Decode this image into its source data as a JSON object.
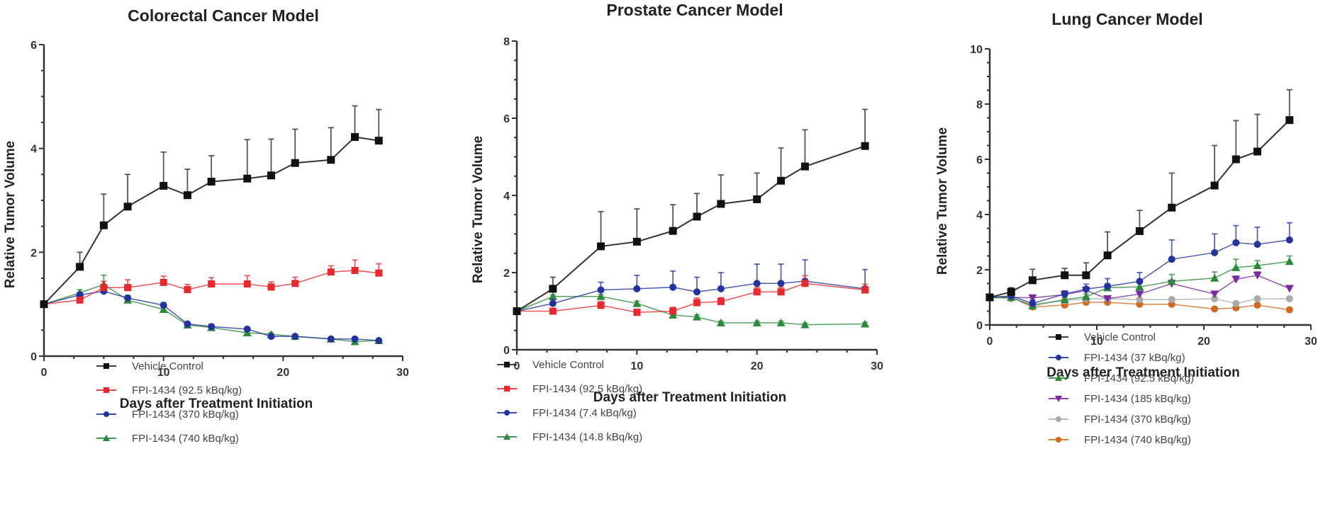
{
  "chart_data": [
    {
      "type": "line",
      "title": "Colorectal Cancer Model",
      "xlabel": "Days after Treatment Initiation",
      "ylabel": "Relative Tumor Volume",
      "xlim": [
        0,
        30
      ],
      "ylim": [
        0,
        6
      ],
      "xticks": [
        0,
        10,
        20,
        30
      ],
      "yticks": [
        0,
        2,
        4,
        6
      ],
      "grid": false,
      "legend_position": "bottom",
      "series": [
        {
          "name": "Vehicle Control",
          "color": "#111111",
          "marker": "square",
          "x": [
            0,
            3,
            5,
            7,
            10,
            12,
            14,
            17,
            19,
            21,
            24,
            26,
            28
          ],
          "y": [
            1.0,
            1.72,
            2.52,
            2.88,
            3.28,
            3.1,
            3.36,
            3.42,
            3.48,
            3.72,
            3.78,
            4.22,
            4.15
          ],
          "err": [
            0,
            0.28,
            0.6,
            0.62,
            0.65,
            0.5,
            0.5,
            0.75,
            0.7,
            0.65,
            0.62,
            0.6,
            0.6
          ]
        },
        {
          "name": "FPI-1434 (92.5 kBq/kg)",
          "color": "#e8282c",
          "marker": "square",
          "x": [
            0,
            3,
            5,
            7,
            10,
            12,
            14,
            17,
            19,
            21,
            24,
            26,
            28
          ],
          "y": [
            1.0,
            1.08,
            1.32,
            1.32,
            1.42,
            1.28,
            1.39,
            1.39,
            1.33,
            1.4,
            1.62,
            1.65,
            1.6
          ],
          "err": [
            0,
            0.05,
            0.12,
            0.15,
            0.12,
            0.1,
            0.12,
            0.16,
            0.1,
            0.12,
            0.12,
            0.2,
            0.18
          ]
        },
        {
          "name": "FPI-1434 (370 kBq/kg)",
          "color": "#2233a0",
          "marker": "circle",
          "x": [
            0,
            3,
            5,
            7,
            10,
            12,
            14,
            17,
            19,
            21,
            24,
            26,
            28
          ],
          "y": [
            1.0,
            1.18,
            1.25,
            1.12,
            0.98,
            0.62,
            0.57,
            0.52,
            0.38,
            0.38,
            0.33,
            0.33,
            0.3
          ],
          "err": [
            0,
            0.05,
            0.06,
            0.05,
            0.05,
            0.04,
            0.04,
            0.04,
            0.03,
            0.03,
            0.02,
            0.02,
            0.02
          ]
        },
        {
          "name": "FPI-1434 (740 kBq/kg)",
          "color": "#2a8a3a",
          "marker": "triangle",
          "x": [
            0,
            3,
            5,
            7,
            10,
            12,
            14,
            17,
            19,
            21,
            24,
            26,
            28
          ],
          "y": [
            1.0,
            1.22,
            1.38,
            1.08,
            0.9,
            0.6,
            0.55,
            0.45,
            0.42,
            0.38,
            0.33,
            0.28,
            0.3
          ],
          "err": [
            0,
            0.06,
            0.18,
            0.06,
            0.05,
            0.04,
            0.04,
            0.03,
            0.03,
            0.03,
            0.02,
            0.02,
            0.02
          ]
        }
      ]
    },
    {
      "type": "line",
      "title": "Prostate Cancer Model",
      "xlabel": "Days after Treatment Initiation",
      "ylabel": "Relative Tumor Volume",
      "xlim": [
        0,
        30
      ],
      "ylim": [
        0,
        8
      ],
      "xticks": [
        0,
        10,
        20,
        30
      ],
      "yticks": [
        0,
        2,
        4,
        6,
        8
      ],
      "grid": false,
      "legend_position": "bottom",
      "series": [
        {
          "name": "Vehicle Control",
          "color": "#111111",
          "marker": "square",
          "x": [
            0,
            3,
            7,
            10,
            13,
            15,
            17,
            20,
            22,
            24,
            29
          ],
          "y": [
            1.0,
            1.58,
            2.68,
            2.8,
            3.08,
            3.45,
            3.78,
            3.9,
            4.38,
            4.75,
            5.28
          ],
          "err": [
            0,
            0.3,
            0.9,
            0.85,
            0.68,
            0.6,
            0.75,
            0.68,
            0.85,
            0.95,
            0.95
          ]
        },
        {
          "name": "FPI-1434 (92.5 kBq/kg)",
          "color": "#e8282c",
          "marker": "square",
          "x": [
            0,
            3,
            7,
            10,
            13,
            15,
            17,
            20,
            22,
            24,
            29
          ],
          "y": [
            1.0,
            1.0,
            1.15,
            0.97,
            1.0,
            1.22,
            1.25,
            1.5,
            1.5,
            1.72,
            1.55
          ],
          "err": [
            0,
            0.05,
            0.1,
            0.08,
            0.1,
            0.12,
            0.1,
            0.12,
            0.12,
            0.2,
            0.15
          ]
        },
        {
          "name": "FPI-1434 (7.4 kBq/kg)",
          "color": "#2233a0",
          "marker": "circle",
          "x": [
            0,
            3,
            7,
            10,
            13,
            15,
            17,
            20,
            22,
            24,
            29
          ],
          "y": [
            1.0,
            1.2,
            1.55,
            1.58,
            1.62,
            1.5,
            1.58,
            1.72,
            1.72,
            1.78,
            1.58
          ],
          "err": [
            0,
            0.1,
            0.2,
            0.35,
            0.42,
            0.38,
            0.42,
            0.5,
            0.5,
            0.55,
            0.5
          ]
        },
        {
          "name": "FPI-1434 (14.8 kBq/kg)",
          "color": "#2a8a3a",
          "marker": "triangle",
          "x": [
            0,
            3,
            7,
            10,
            13,
            15,
            17,
            20,
            22,
            24,
            29
          ],
          "y": [
            1.0,
            1.38,
            1.38,
            1.2,
            0.9,
            0.85,
            0.7,
            0.7,
            0.7,
            0.65,
            0.67
          ],
          "err": [
            0,
            0.04,
            0.05,
            0.06,
            0.04,
            0.05,
            0.04,
            0.04,
            0.04,
            0.04,
            0.04
          ]
        }
      ]
    },
    {
      "type": "line",
      "title": "Lung Cancer Model",
      "xlabel": "Days after Treatment Initiation",
      "ylabel": "Relative Tumor Volume",
      "xlim": [
        0,
        30
      ],
      "ylim": [
        0,
        10
      ],
      "xticks": [
        0,
        10,
        20,
        30
      ],
      "yticks": [
        0,
        2,
        4,
        6,
        8,
        10
      ],
      "grid": false,
      "legend_position": "bottom",
      "series": [
        {
          "name": "Vehicle Control",
          "color": "#111111",
          "marker": "square",
          "x": [
            0,
            2,
            4,
            7,
            9,
            11,
            14,
            17,
            21,
            23,
            25,
            28
          ],
          "y": [
            1.0,
            1.2,
            1.62,
            1.8,
            1.8,
            2.52,
            3.4,
            4.25,
            5.05,
            6.0,
            6.28,
            7.42
          ],
          "err": [
            0,
            0.15,
            0.4,
            0.25,
            0.45,
            0.85,
            0.75,
            1.25,
            1.45,
            1.4,
            1.35,
            1.1
          ]
        },
        {
          "name": "FPI-1434 (37 kBq/kg)",
          "color": "#2233a0",
          "marker": "circle",
          "x": [
            0,
            2,
            4,
            7,
            9,
            11,
            14,
            17,
            21,
            23,
            25,
            28
          ],
          "y": [
            1.0,
            1.05,
            0.78,
            1.12,
            1.3,
            1.4,
            1.58,
            2.38,
            2.62,
            2.98,
            2.92,
            3.08
          ],
          "err": [
            0,
            0.05,
            0.12,
            0.12,
            0.18,
            0.28,
            0.32,
            0.7,
            0.68,
            0.62,
            0.62,
            0.62
          ]
        },
        {
          "name": "FPI-1434 (92.5 kBq/kg)",
          "color": "#2a8a3a",
          "marker": "triangle",
          "x": [
            0,
            2,
            4,
            7,
            9,
            11,
            14,
            17,
            21,
            23,
            25,
            28
          ],
          "y": [
            1.0,
            1.0,
            0.7,
            0.92,
            1.02,
            1.35,
            1.38,
            1.58,
            1.7,
            2.08,
            2.15,
            2.3
          ],
          "err": [
            0,
            0.05,
            0.06,
            0.08,
            0.1,
            0.15,
            0.15,
            0.25,
            0.22,
            0.3,
            0.18,
            0.2
          ]
        },
        {
          "name": "FPI-1434 (185 kBq/kg)",
          "color": "#7a2aa0",
          "marker": "triangle-down",
          "x": [
            0,
            2,
            4,
            7,
            9,
            11,
            14,
            17,
            21,
            23,
            25,
            28
          ],
          "y": [
            1.0,
            1.0,
            0.98,
            1.1,
            1.25,
            0.95,
            1.12,
            1.5,
            1.12,
            1.65,
            1.8,
            1.32
          ],
          "err": [
            0,
            0.05,
            0.06,
            0.08,
            0.1,
            0.08,
            0.1,
            0.12,
            0.1,
            0.12,
            0.12,
            0.1
          ]
        },
        {
          "name": "FPI-1434 (370 kBq/kg)",
          "color": "#aaaaaa",
          "marker": "circle",
          "x": [
            0,
            2,
            4,
            7,
            9,
            11,
            14,
            17,
            21,
            23,
            25,
            28
          ],
          "y": [
            1.0,
            0.95,
            0.75,
            0.88,
            0.95,
            0.95,
            0.92,
            0.92,
            0.95,
            0.78,
            0.95,
            0.95
          ],
          "err": [
            0,
            0.04,
            0.04,
            0.04,
            0.04,
            0.04,
            0.04,
            0.04,
            0.04,
            0.04,
            0.04,
            0.04
          ]
        },
        {
          "name": "FPI-1434 (740 kBq/kg)",
          "color": "#d2691e",
          "marker": "circle",
          "x": [
            0,
            2,
            4,
            7,
            9,
            11,
            14,
            17,
            21,
            23,
            25,
            28
          ],
          "y": [
            1.0,
            1.0,
            0.65,
            0.72,
            0.82,
            0.82,
            0.75,
            0.75,
            0.58,
            0.62,
            0.72,
            0.55
          ],
          "err": [
            0,
            0.03,
            0.04,
            0.04,
            0.04,
            0.04,
            0.04,
            0.04,
            0.04,
            0.04,
            0.04,
            0.04
          ]
        }
      ]
    }
  ]
}
